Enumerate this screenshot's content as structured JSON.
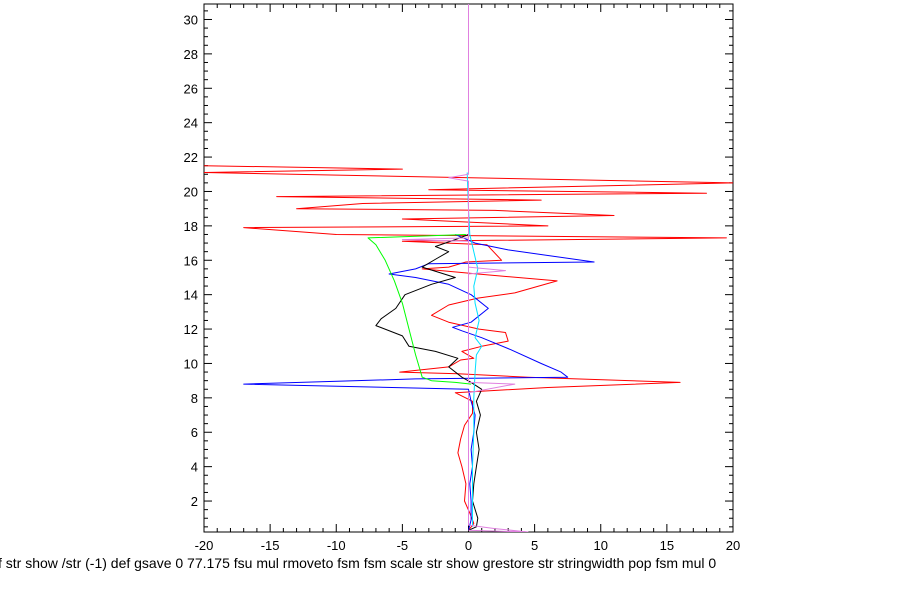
{
  "chart_data": {
    "type": "line",
    "title": "",
    "xlabel": "",
    "ylabel": "",
    "caption": "f str show /str (-1) def gsave 0 77.175 fsu mul rmoveto fsm fsm scale str show grestore str stringwidth pop fsm mul 0",
    "xlim": [
      -20,
      20
    ],
    "ylim": [
      0.2,
      30.9
    ],
    "xticks": [
      -20,
      -15,
      -10,
      -5,
      0,
      5,
      10,
      15,
      20
    ],
    "yticks": [
      2,
      4,
      6,
      8,
      10,
      12,
      14,
      16,
      18,
      20,
      22,
      24,
      26,
      28,
      30
    ],
    "grid": false,
    "series": [
      {
        "color": "#ff0000",
        "points": [
          [
            0,
            0.3
          ],
          [
            0.4,
            0.7
          ],
          [
            0.1,
            1.3
          ],
          [
            -0.3,
            2.0
          ],
          [
            -0.2,
            3.0
          ],
          [
            -0.5,
            4.0
          ],
          [
            -0.8,
            4.8
          ],
          [
            -0.6,
            5.6
          ],
          [
            -0.3,
            6.4
          ],
          [
            0.3,
            7.1
          ],
          [
            0.3,
            7.8
          ],
          [
            -1.0,
            8.3
          ],
          [
            6.0,
            8.6
          ],
          [
            16.0,
            8.9
          ],
          [
            4.5,
            9.2
          ],
          [
            -0.8,
            9.4
          ],
          [
            -5.2,
            9.5
          ],
          [
            -1.5,
            9.8
          ],
          [
            -0.6,
            10.2
          ],
          [
            0.4,
            10.3
          ],
          [
            -0.5,
            10.7
          ],
          [
            1.0,
            11.0
          ],
          [
            3.0,
            11.3
          ],
          [
            2.8,
            11.8
          ],
          [
            0.8,
            12.0
          ],
          [
            -1.5,
            12.4
          ],
          [
            -2.8,
            12.8
          ],
          [
            -1.5,
            13.4
          ],
          [
            0.7,
            13.8
          ],
          [
            3.5,
            14.1
          ],
          [
            6.7,
            14.8
          ],
          [
            0.7,
            15.2
          ],
          [
            -3.5,
            15.5
          ],
          [
            -1.5,
            15.6
          ],
          [
            -0.2,
            15.9
          ],
          [
            2.5,
            16.0
          ],
          [
            1.4,
            16.9
          ],
          [
            -5.0,
            17.1
          ],
          [
            19.5,
            17.3
          ],
          [
            -10.0,
            17.5
          ],
          [
            -17.0,
            17.9
          ],
          [
            6.0,
            18.0
          ],
          [
            -5.0,
            18.4
          ],
          [
            11.0,
            18.6
          ],
          [
            2.0,
            18.9
          ],
          [
            -13.0,
            19.0
          ],
          [
            -8.0,
            19.3
          ],
          [
            5.5,
            19.5
          ],
          [
            -14.5,
            19.7
          ],
          [
            18.0,
            19.9
          ],
          [
            -3.0,
            20.1
          ],
          [
            20.0,
            20.5
          ],
          [
            -20.0,
            21.1
          ],
          [
            -5.0,
            21.3
          ],
          [
            -20.0,
            21.5
          ]
        ]
      },
      {
        "color": "#0000ff",
        "points": [
          [
            0,
            0.3
          ],
          [
            0.2,
            0.9
          ],
          [
            0.2,
            2.0
          ],
          [
            0.1,
            3.0
          ],
          [
            0.3,
            4.0
          ],
          [
            0.2,
            5.0
          ],
          [
            0.4,
            6.0
          ],
          [
            0.5,
            7.0
          ],
          [
            0.2,
            7.8
          ],
          [
            0.0,
            8.5
          ],
          [
            -17.0,
            8.8
          ],
          [
            -4.0,
            9.1
          ],
          [
            7.5,
            9.2
          ],
          [
            7.0,
            9.5
          ],
          [
            5.5,
            10.0
          ],
          [
            3.2,
            10.8
          ],
          [
            1.0,
            11.5
          ],
          [
            -0.5,
            11.9
          ],
          [
            -1.2,
            12.1
          ],
          [
            0.2,
            12.4
          ],
          [
            1.5,
            13.2
          ],
          [
            0.2,
            14.0
          ],
          [
            -1.5,
            14.6
          ],
          [
            -4.0,
            15.0
          ],
          [
            -6.0,
            15.2
          ],
          [
            -4.0,
            15.5
          ],
          [
            -3.0,
            15.8
          ],
          [
            9.5,
            15.9
          ],
          [
            3.0,
            16.6
          ],
          [
            0.5,
            17.0
          ],
          [
            -1.0,
            17.5
          ]
        ]
      },
      {
        "color": "#000000",
        "points": [
          [
            0,
            0.3
          ],
          [
            0.6,
            0.5
          ],
          [
            0.7,
            1.0
          ],
          [
            0.3,
            2.0
          ],
          [
            0.4,
            3.0
          ],
          [
            0.6,
            4.0
          ],
          [
            0.8,
            5.0
          ],
          [
            0.6,
            6.0
          ],
          [
            0.9,
            7.0
          ],
          [
            0.6,
            7.8
          ],
          [
            1.0,
            8.5
          ],
          [
            0.2,
            8.9
          ],
          [
            -0.5,
            9.2
          ],
          [
            -1.5,
            9.8
          ],
          [
            -0.8,
            10.3
          ],
          [
            -2.5,
            10.7
          ],
          [
            -4.5,
            11.0
          ],
          [
            -5.0,
            11.6
          ],
          [
            -7.0,
            12.2
          ],
          [
            -6.6,
            12.6
          ],
          [
            -5.5,
            13.2
          ],
          [
            -4.8,
            14.0
          ],
          [
            -2.8,
            14.6
          ],
          [
            -1.0,
            15.0
          ],
          [
            -3.5,
            15.6
          ],
          [
            -2.4,
            16.1
          ],
          [
            -1.5,
            16.5
          ],
          [
            -2.5,
            16.8
          ],
          [
            -1.0,
            17.2
          ],
          [
            0.0,
            17.5
          ]
        ]
      },
      {
        "color": "#00ff00",
        "points": [
          [
            0.2,
            8.8
          ],
          [
            -1.0,
            8.9
          ],
          [
            -2.8,
            9.0
          ],
          [
            -3.5,
            9.2
          ],
          [
            -4.0,
            10.5
          ],
          [
            -4.5,
            12.0
          ],
          [
            -5.0,
            13.5
          ],
          [
            -5.6,
            14.8
          ],
          [
            -6.3,
            16.0
          ],
          [
            -7.0,
            16.9
          ],
          [
            -7.6,
            17.3
          ],
          [
            -0.2,
            17.5
          ]
        ]
      },
      {
        "color": "#00e0ff",
        "points": [
          [
            0.3,
            0.5
          ],
          [
            0.3,
            2.0
          ],
          [
            0.3,
            4.0
          ],
          [
            0.4,
            6.0
          ],
          [
            0.4,
            8.0
          ],
          [
            0.5,
            9.5
          ],
          [
            0.6,
            10.5
          ],
          [
            1.0,
            11.0
          ],
          [
            0.5,
            11.5
          ],
          [
            0.8,
            12.5
          ],
          [
            0.5,
            13.5
          ],
          [
            0.4,
            14.5
          ],
          [
            0.7,
            15.5
          ],
          [
            0.4,
            16.5
          ],
          [
            0.1,
            17.5
          ],
          [
            0.0,
            19.0
          ],
          [
            -0.1,
            21.1
          ]
        ]
      },
      {
        "color": "#e080e0",
        "points": [
          [
            0.0,
            0.3
          ],
          [
            4.5,
            0.2
          ],
          [
            2.0,
            0.4
          ],
          [
            0.0,
            0.6
          ],
          [
            0.0,
            8.3
          ],
          [
            3.5,
            8.8
          ],
          [
            0.0,
            8.9
          ],
          [
            0.0,
            15.6
          ],
          [
            2.8,
            15.4
          ],
          [
            0.0,
            15.2
          ],
          [
            0.0,
            17.3
          ],
          [
            -5.0,
            17.2
          ],
          [
            0.0,
            17.1
          ],
          [
            0.0,
            20.6
          ],
          [
            -1.5,
            20.8
          ],
          [
            0.0,
            21.0
          ],
          [
            0.0,
            30.9
          ]
        ]
      }
    ]
  }
}
